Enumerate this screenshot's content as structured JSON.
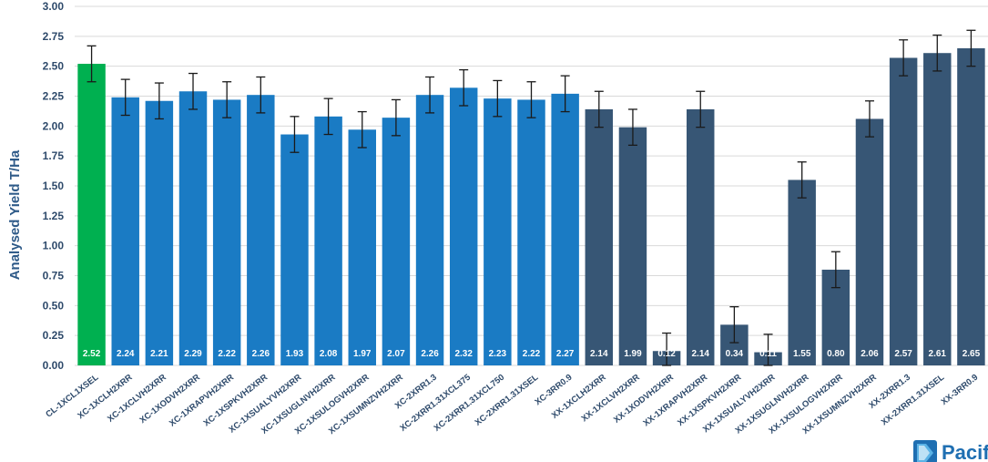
{
  "chart_data": {
    "type": "bar",
    "title": "",
    "xlabel": "",
    "ylabel": "Analysed Yield T/Ha",
    "ylim": [
      0,
      3
    ],
    "y_ticks": [
      "0.00",
      "0.25",
      "0.50",
      "0.75",
      "1.00",
      "1.25",
      "1.50",
      "1.75",
      "2.00",
      "2.25",
      "2.50",
      "2.75",
      "3.00"
    ],
    "grid": true,
    "error_bars": true,
    "categories": [
      "CL-1XCL1XSEL",
      "XC-1XCLH2XRR",
      "XC-1XCLVH2XRR",
      "XC-1XODVH2XRR",
      "XC-1XRAPVH2XRR",
      "XC-1XSPKVH2XRR",
      "XC-1XSUALYVH2XRR",
      "XC-1XSUGLNVH2XRR",
      "XC-1XSULOGVH2XRR",
      "XC-1XSUMNZVH2XRR",
      "XC-2XRR1.3",
      "XC-2XRR1.31XCL375",
      "XC-2XRR1.31XCL750",
      "XC-2XRR1.31XSEL",
      "XC-3RR0.9",
      "XX-1XCLH2XRR",
      "XX-1XCLVH2XRR",
      "XX-1XODVH2XRR",
      "XX-1XRAPVH2XRR",
      "XX-1XSPKVH2XRR",
      "XX-1XSUALYVH2XRR",
      "XX-1XSUGLNVH2XRR",
      "XX-1XSULOGVH2XRR",
      "XX-1XSUMNZVH2XRR",
      "XX-2XRR1.3",
      "XX-2XRR1.31XSEL",
      "XX-3RR0.9"
    ],
    "values": [
      2.52,
      2.24,
      2.21,
      2.29,
      2.22,
      2.26,
      1.93,
      2.08,
      1.97,
      2.07,
      2.26,
      2.32,
      2.23,
      2.22,
      2.27,
      2.14,
      1.99,
      0.12,
      2.14,
      0.34,
      0.11,
      1.55,
      0.8,
      2.06,
      2.57,
      2.61,
      2.65
    ],
    "value_labels": [
      "2.52",
      "2.24",
      "2.21",
      "2.29",
      "2.22",
      "2.26",
      "1.93",
      "2.08",
      "1.97",
      "2.07",
      "2.26",
      "2.32",
      "2.23",
      "2.22",
      "2.27",
      "2.14",
      "1.99",
      "0.12",
      "2.14",
      "0.34",
      "0.11",
      "1.55",
      "0.80",
      "2.06",
      "2.57",
      "2.61",
      "2.65"
    ],
    "errors": [
      0.15,
      0.15,
      0.15,
      0.15,
      0.15,
      0.15,
      0.15,
      0.15,
      0.15,
      0.15,
      0.15,
      0.15,
      0.15,
      0.15,
      0.15,
      0.15,
      0.15,
      0.15,
      0.15,
      0.15,
      0.15,
      0.15,
      0.15,
      0.15,
      0.15,
      0.15,
      0.15
    ],
    "groups": [
      "CL",
      "XC",
      "XC",
      "XC",
      "XC",
      "XC",
      "XC",
      "XC",
      "XC",
      "XC",
      "XC",
      "XC",
      "XC",
      "XC",
      "XC",
      "XX",
      "XX",
      "XX",
      "XX",
      "XX",
      "XX",
      "XX",
      "XX",
      "XX",
      "XX",
      "XX",
      "XX"
    ],
    "colors": {
      "CL": "#00b050",
      "XC": "#1a7bc4",
      "XX": "#375675"
    }
  },
  "logo": {
    "text": "Pacif",
    "icon": "company-logo-icon"
  }
}
